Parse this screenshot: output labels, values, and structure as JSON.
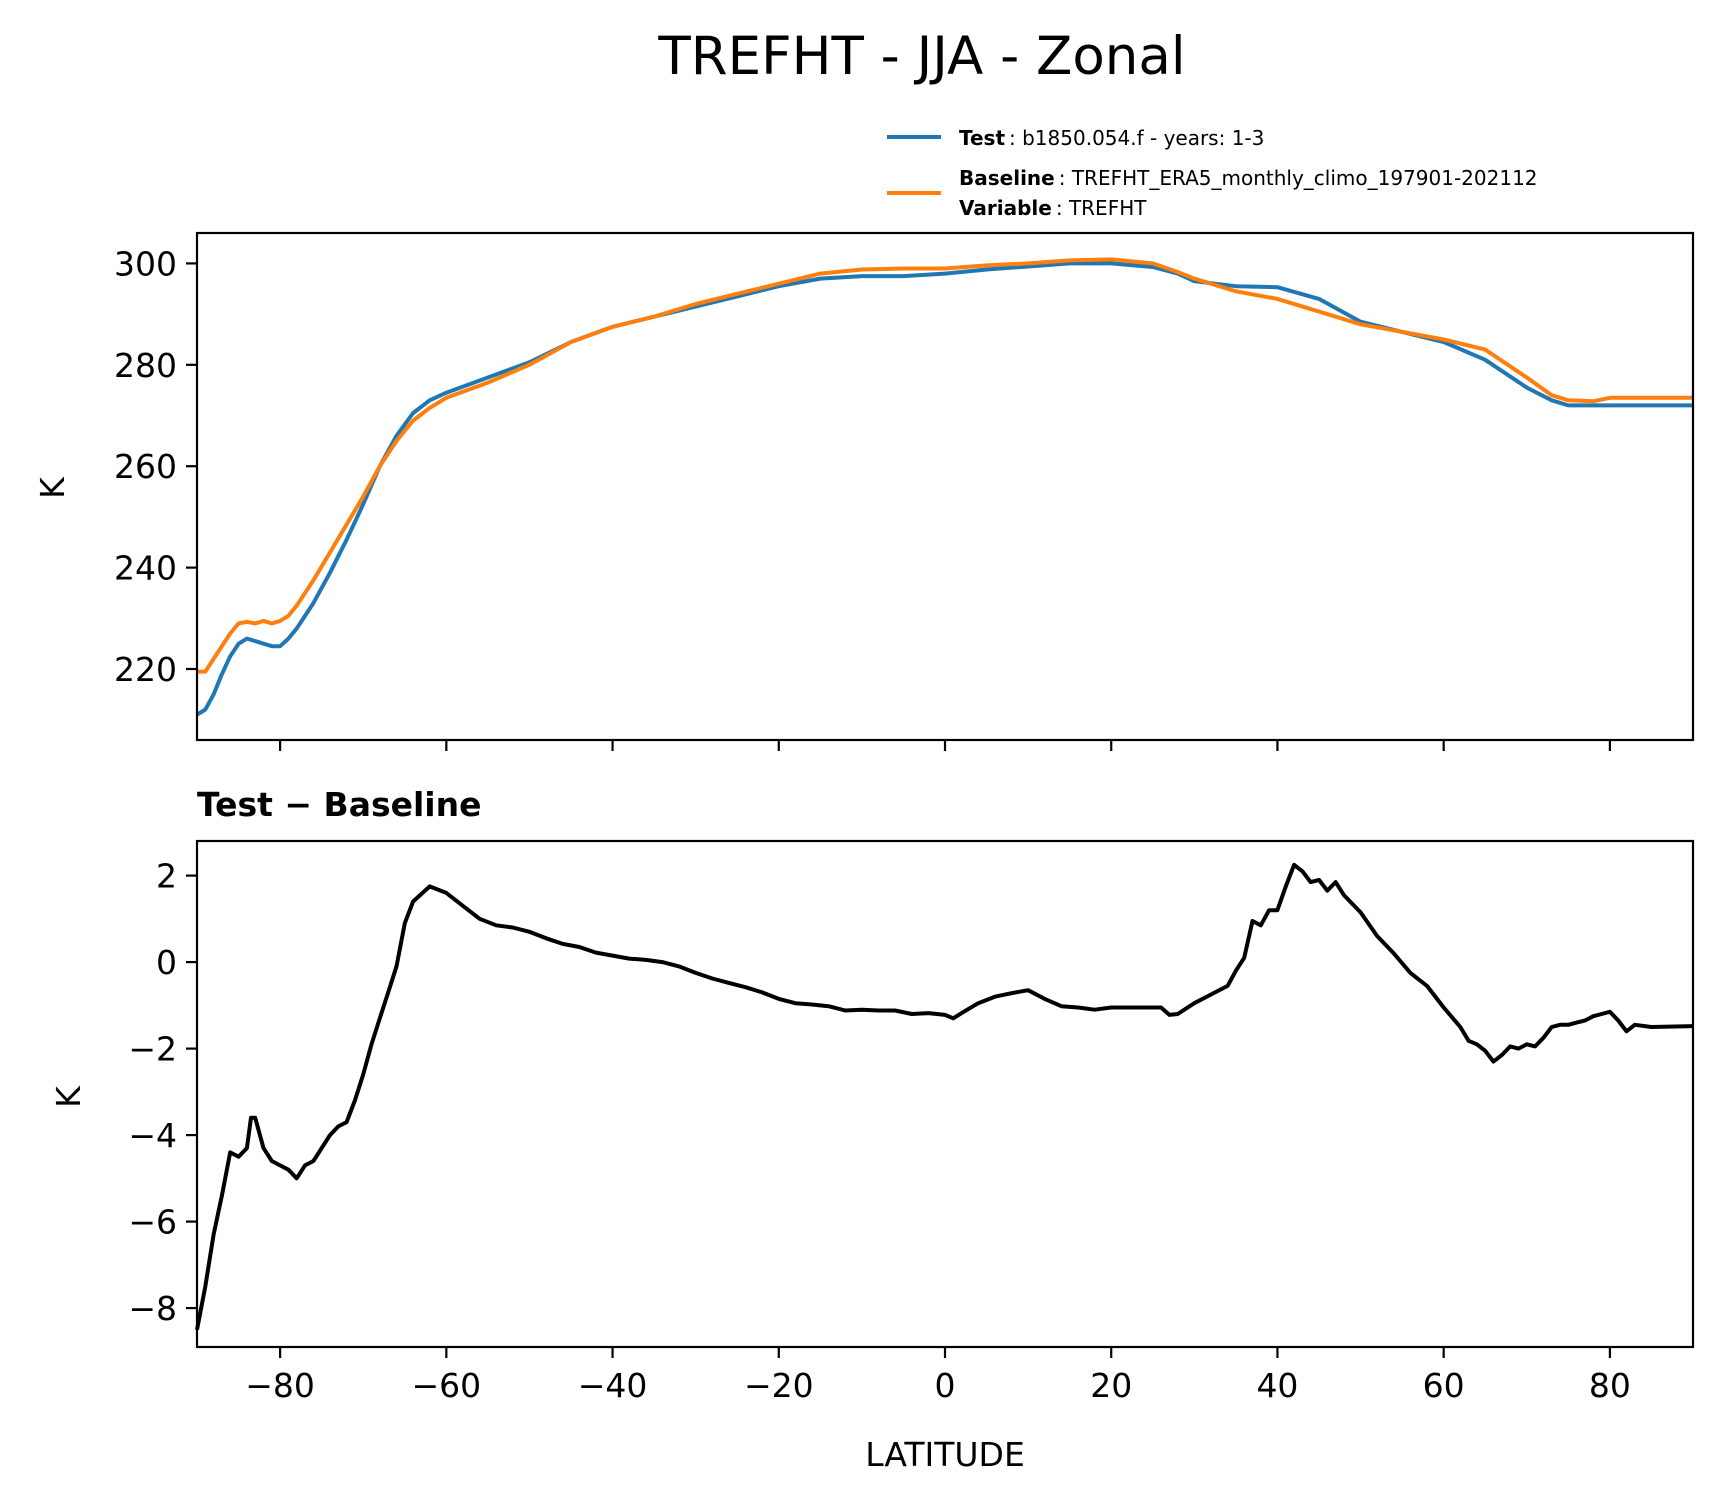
{
  "figure_title": "TREFHT - JJA - Zonal",
  "legend": {
    "test_key": "Test",
    "test_value": ": b1850.054.f - years: 1-3",
    "baseline_key": "Baseline",
    "baseline_value": ": TREFHT_ERA5_monthly_climo_197901-202112",
    "variable_key": "Variable",
    "variable_value": ": TREFHT"
  },
  "colors": {
    "test": "#1f77b4",
    "baseline": "#ff7f0e",
    "diff": "#000000"
  },
  "chart_data": [
    {
      "type": "line",
      "title": "",
      "xlabel": "",
      "ylabel": "K",
      "xlim": [
        -90,
        90
      ],
      "ylim": [
        206,
        306
      ],
      "x_ticks": [
        -80,
        -60,
        -40,
        -20,
        0,
        20,
        40,
        60,
        80
      ],
      "y_ticks": [
        220,
        240,
        260,
        280,
        300
      ],
      "y_tick_labels": [
        "220",
        "240",
        "260",
        "280",
        "300"
      ],
      "grid": false,
      "legend_position": "above-right",
      "series": [
        {
          "name": "Test",
          "color": "#1f77b4",
          "x": [
            -90,
            -89,
            -88,
            -87,
            -86,
            -85,
            -84,
            -83,
            -82,
            -81,
            -80,
            -79,
            -78,
            -76,
            -74,
            -72,
            -70,
            -68,
            -66,
            -64,
            -62,
            -60,
            -55,
            -50,
            -45,
            -40,
            -35,
            -30,
            -25,
            -20,
            -15,
            -10,
            -5,
            0,
            5,
            10,
            15,
            20,
            25,
            28,
            30,
            35,
            40,
            45,
            50,
            55,
            60,
            65,
            70,
            73,
            75,
            78,
            80,
            85,
            90
          ],
          "y": [
            211,
            212,
            215,
            219,
            222.5,
            225,
            226,
            225.5,
            225,
            224.5,
            224.5,
            226,
            228,
            233,
            239,
            245.5,
            252.5,
            260,
            266,
            270.5,
            273,
            274.5,
            277.5,
            280.5,
            284.5,
            287.5,
            289.5,
            291.5,
            293.5,
            295.5,
            297,
            297.5,
            297.5,
            298,
            298.8,
            299.4,
            300,
            300,
            299.3,
            298,
            296.5,
            295.5,
            295.3,
            293,
            288.5,
            286.5,
            284.5,
            281,
            275.5,
            273,
            272,
            272,
            272,
            272,
            272
          ]
        },
        {
          "name": "Baseline",
          "color": "#ff7f0e",
          "x": [
            -90,
            -89,
            -88,
            -87,
            -86,
            -85,
            -84,
            -83,
            -82,
            -81,
            -80,
            -79,
            -78,
            -76,
            -74,
            -72,
            -70,
            -68,
            -66,
            -64,
            -62,
            -60,
            -55,
            -50,
            -45,
            -40,
            -35,
            -30,
            -25,
            -20,
            -15,
            -10,
            -5,
            0,
            5,
            10,
            15,
            20,
            25,
            28,
            30,
            35,
            40,
            45,
            50,
            55,
            60,
            65,
            70,
            73,
            75,
            78,
            80,
            85,
            90
          ],
          "y": [
            219.5,
            219.5,
            222,
            224.5,
            227,
            229,
            229.3,
            229,
            229.5,
            229,
            229.5,
            230.5,
            232.5,
            237.5,
            243,
            248.5,
            254,
            260,
            265,
            269,
            271.5,
            273.5,
            276.5,
            280,
            284.5,
            287.5,
            289.5,
            292,
            294,
            296,
            298,
            298.8,
            299,
            299,
            299.6,
            300,
            300.6,
            300.8,
            300,
            298.3,
            297,
            294.5,
            293,
            290.5,
            288,
            286.5,
            285,
            283,
            277.5,
            274,
            273,
            272.8,
            273.5,
            273.5,
            273.5
          ]
        }
      ]
    },
    {
      "type": "line",
      "title": "Test − Baseline",
      "xlabel": "LATITUDE",
      "ylabel": "K",
      "xlim": [
        -90,
        90
      ],
      "ylim": [
        -8.9,
        2.8
      ],
      "x_ticks": [
        -80,
        -60,
        -40,
        -20,
        0,
        20,
        40,
        60,
        80
      ],
      "x_tick_labels": [
        "−80",
        "−60",
        "−40",
        "−20",
        "0",
        "20",
        "40",
        "60",
        "80"
      ],
      "y_ticks": [
        2,
        0,
        -2,
        -4,
        -6,
        -8
      ],
      "y_tick_labels": [
        "2",
        "0",
        "−2",
        "−4",
        "−6",
        "−8"
      ],
      "grid": false,
      "series": [
        {
          "color": "#000000",
          "x": [
            -90,
            -89,
            -88,
            -87,
            -86,
            -85,
            -84,
            -83.5,
            -83,
            -82,
            -81,
            -80,
            -79,
            -78,
            -77,
            -76,
            -75,
            -74,
            -73,
            -72,
            -71,
            -70,
            -69,
            -68,
            -67,
            -66,
            -65,
            -64,
            -62,
            -60,
            -58,
            -56,
            -54,
            -52,
            -50,
            -48,
            -46,
            -44,
            -42,
            -40,
            -38,
            -36,
            -34,
            -32,
            -30,
            -28,
            -26,
            -24,
            -22,
            -20,
            -18,
            -16,
            -14,
            -12,
            -10,
            -8,
            -6,
            -4,
            -2,
            0,
            1,
            2,
            4,
            6,
            8,
            10,
            12,
            14,
            16,
            18,
            20,
            22,
            24,
            26,
            27,
            28,
            30,
            32,
            34,
            35,
            36,
            37,
            38,
            39,
            40,
            41,
            42,
            43,
            44,
            45,
            46,
            47,
            48,
            50,
            52,
            54,
            56,
            58,
            60,
            62,
            63,
            64,
            65,
            66,
            67,
            68,
            69,
            70,
            71,
            72,
            73,
            74,
            75,
            76,
            77,
            78,
            79,
            80,
            81,
            82,
            83,
            85,
            90
          ],
          "y": [
            -8.5,
            -7.5,
            -6.3,
            -5.4,
            -4.4,
            -4.5,
            -4.3,
            -3.6,
            -3.6,
            -4.3,
            -4.6,
            -4.7,
            -4.8,
            -5,
            -4.7,
            -4.6,
            -4.3,
            -4,
            -3.8,
            -3.7,
            -3.2,
            -2.6,
            -1.9,
            -1.3,
            -0.7,
            -0.1,
            0.9,
            1.4,
            1.75,
            1.6,
            1.3,
            1,
            0.85,
            0.8,
            0.7,
            0.55,
            0.42,
            0.35,
            0.22,
            0.15,
            0.08,
            0.05,
            0,
            -0.1,
            -0.25,
            -0.38,
            -0.48,
            -0.58,
            -0.7,
            -0.85,
            -0.95,
            -0.98,
            -1.02,
            -1.12,
            -1.1,
            -1.12,
            -1.12,
            -1.2,
            -1.18,
            -1.22,
            -1.3,
            -1.18,
            -0.95,
            -0.8,
            -0.72,
            -0.65,
            -0.85,
            -1.02,
            -1.05,
            -1.1,
            -1.05,
            -1.05,
            -1.05,
            -1.05,
            -1.22,
            -1.2,
            -0.95,
            -0.75,
            -0.55,
            -0.2,
            0.1,
            0.95,
            0.85,
            1.2,
            1.2,
            1.75,
            2.25,
            2.1,
            1.85,
            1.9,
            1.65,
            1.85,
            1.55,
            1.15,
            0.6,
            0.2,
            -0.25,
            -0.55,
            -1.05,
            -1.5,
            -1.82,
            -1.9,
            -2.05,
            -2.3,
            -2.15,
            -1.95,
            -2.0,
            -1.9,
            -1.95,
            -1.75,
            -1.5,
            -1.45,
            -1.45,
            -1.4,
            -1.35,
            -1.25,
            -1.2,
            -1.15,
            -1.35,
            -1.6,
            -1.45,
            -1.5,
            -1.48
          ]
        }
      ]
    }
  ]
}
